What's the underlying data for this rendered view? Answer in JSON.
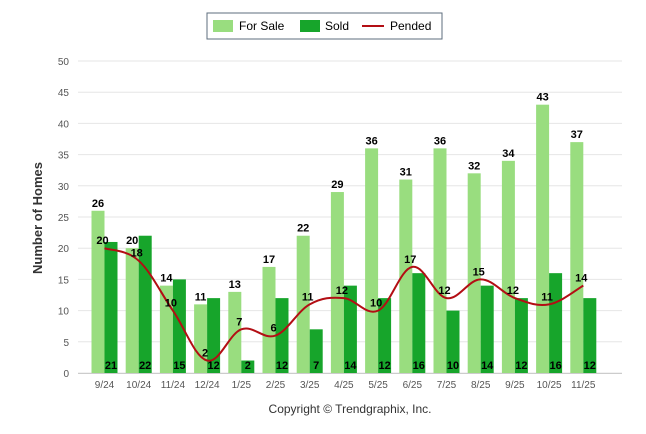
{
  "chart_data": {
    "type": "bar",
    "ylabel": "Number of Homes",
    "xlabel": "",
    "ylim": [
      0,
      50
    ],
    "yticks": [
      0,
      5,
      10,
      15,
      20,
      25,
      30,
      35,
      40,
      45,
      50
    ],
    "grid": true,
    "legend_position": "top-center",
    "categories": [
      "9/24",
      "10/24",
      "11/24",
      "12/24",
      "1/25",
      "2/25",
      "3/25",
      "4/25",
      "5/25",
      "6/25",
      "7/25",
      "8/25",
      "9/25",
      "10/25",
      "11/25"
    ],
    "series": [
      {
        "name": "For Sale",
        "kind": "bar",
        "color": "#99dd7f",
        "values": [
          26,
          20,
          14,
          11,
          13,
          17,
          22,
          29,
          36,
          31,
          36,
          32,
          34,
          43,
          37
        ]
      },
      {
        "name": "Sold",
        "kind": "bar",
        "color": "#17a52b",
        "values": [
          21,
          22,
          15,
          12,
          2,
          12,
          7,
          14,
          12,
          16,
          10,
          14,
          12,
          16,
          12
        ]
      },
      {
        "name": "Pended",
        "kind": "line",
        "color": "#b30e14",
        "values": [
          20,
          18,
          10,
          2,
          7,
          6,
          11,
          12,
          10,
          17,
          12,
          15,
          12,
          11,
          14
        ]
      }
    ]
  },
  "footer": {
    "credit": "Copyright © Trendgraphix, Inc."
  }
}
